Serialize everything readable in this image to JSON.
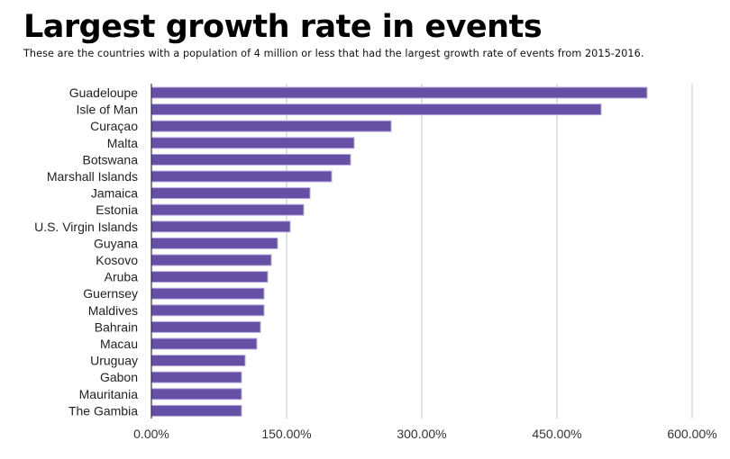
{
  "chart_data": {
    "type": "bar",
    "orientation": "horizontal",
    "title": "Largest growth rate in events",
    "subtitle": "These are the countries with a population of 4 million or less that had the largest growth rate of events from 2015-2016.",
    "xlabel": "",
    "ylabel": "",
    "categories": [
      "Guadeloupe",
      "Isle of Man",
      "Curaçao",
      "Malta",
      "Botswana",
      "Marshall Islands",
      "Jamaica",
      "Estonia",
      "U.S. Virgin Islands",
      "Guyana",
      "Kosovo",
      "Aruba",
      "Guernsey",
      "Maldives",
      "Bahrain",
      "Macau",
      "Uruguay",
      "Gabon",
      "Mauritania",
      "The Gambia"
    ],
    "values": [
      550,
      499,
      266,
      225,
      221,
      200,
      176,
      169,
      154,
      140,
      133,
      129,
      125,
      125,
      121,
      117,
      104,
      100,
      100,
      100
    ],
    "value_unit": "%",
    "xlim": [
      0,
      600
    ],
    "xticks": [
      0,
      150,
      300,
      450,
      600
    ],
    "xtick_labels": [
      "0.00%",
      "150.00%",
      "300.00%",
      "450.00%",
      "600.00%"
    ],
    "grid": true,
    "legend": "none",
    "colors": {
      "bar": "#6650a6",
      "bar_edge": "#b9aee0",
      "grid": "#d9d9d9",
      "axis": "#333333"
    }
  }
}
